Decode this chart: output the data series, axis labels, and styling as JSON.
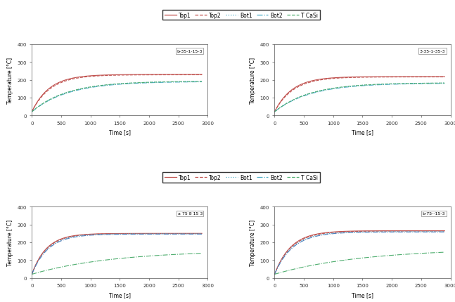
{
  "subplots": [
    {
      "label": "b-35-1-15-3",
      "row": 0,
      "col": 0,
      "curves": {
        "top1": {
          "T_end": 230,
          "T_start": 20,
          "tau": 300,
          "color": "#c0504d",
          "ls": "-",
          "lw": 0.8
        },
        "top2": {
          "T_end": 228,
          "T_start": 20,
          "tau": 320,
          "color": "#c0504d",
          "ls": "--",
          "lw": 0.8
        },
        "bot1": {
          "T_end": 192,
          "T_start": 20,
          "tau": 600,
          "color": "#4bacc6",
          "ls": ":",
          "lw": 0.8
        },
        "bot2": {
          "T_end": 190,
          "T_start": 20,
          "tau": 620,
          "color": "#4bacc6",
          "ls": "-.",
          "lw": 0.8
        },
        "tcasi": {
          "T_end": 192,
          "T_start": 20,
          "tau": 600,
          "color": "#4ead6e",
          "ls": "--",
          "lw": 0.8
        }
      }
    },
    {
      "label": "3-35-1-35-3",
      "row": 0,
      "col": 1,
      "curves": {
        "top1": {
          "T_end": 218,
          "T_start": 20,
          "tau": 300,
          "color": "#c0504d",
          "ls": "-",
          "lw": 0.8
        },
        "top2": {
          "T_end": 216,
          "T_start": 20,
          "tau": 320,
          "color": "#c0504d",
          "ls": "--",
          "lw": 0.8
        },
        "bot1": {
          "T_end": 183,
          "T_start": 20,
          "tau": 600,
          "color": "#4bacc6",
          "ls": ":",
          "lw": 0.8
        },
        "bot2": {
          "T_end": 181,
          "T_start": 20,
          "tau": 620,
          "color": "#4bacc6",
          "ls": "-.",
          "lw": 0.8
        },
        "tcasi": {
          "T_end": 183,
          "T_start": 20,
          "tau": 600,
          "color": "#4ead6e",
          "ls": "--",
          "lw": 0.8
        }
      }
    },
    {
      "label": "a 75 8 15 3",
      "row": 1,
      "col": 0,
      "curves": {
        "top1": {
          "T_end": 250,
          "T_start": 20,
          "tau": 250,
          "color": "#c0504d",
          "ls": "-",
          "lw": 0.8
        },
        "top2": {
          "T_end": 249,
          "T_start": 20,
          "tau": 260,
          "color": "#c0504d",
          "ls": "--",
          "lw": 0.8
        },
        "bot1": {
          "T_end": 248,
          "T_start": 20,
          "tau": 270,
          "color": "#4bacc6",
          "ls": ":",
          "lw": 0.8
        },
        "bot2": {
          "T_end": 246,
          "T_start": 20,
          "tau": 280,
          "color": "#4f81bd",
          "ls": "-.",
          "lw": 0.8
        },
        "tcasi": {
          "T_end": 155,
          "T_start": 20,
          "tau": 1400,
          "color": "#4ead6e",
          "ls": "-.",
          "lw": 0.8
        }
      }
    },
    {
      "label": "b-75--15-3",
      "row": 1,
      "col": 1,
      "curves": {
        "top1": {
          "T_end": 265,
          "T_start": 20,
          "tau": 280,
          "color": "#c0504d",
          "ls": "-",
          "lw": 0.8
        },
        "top2": {
          "T_end": 263,
          "T_start": 20,
          "tau": 290,
          "color": "#c0504d",
          "ls": "--",
          "lw": 0.8
        },
        "bot1": {
          "T_end": 260,
          "T_start": 20,
          "tau": 300,
          "color": "#4bacc6",
          "ls": ":",
          "lw": 0.8
        },
        "bot2": {
          "T_end": 258,
          "T_start": 20,
          "tau": 310,
          "color": "#4f81bd",
          "ls": "-.",
          "lw": 0.8
        },
        "tcasi": {
          "T_end": 165,
          "T_start": 20,
          "tau": 1500,
          "color": "#4ead6e",
          "ls": "-.",
          "lw": 0.8
        }
      }
    }
  ],
  "legend_names": [
    "Top1",
    "Top2",
    "Bot1",
    "Bot2",
    "T CaSi"
  ],
  "legend_colors": [
    "#c0504d",
    "#c0504d",
    "#4bacc6",
    "#4bacc6",
    "#4ead6e"
  ],
  "legend_ls": [
    "-",
    "--",
    ":",
    "-.",
    "--"
  ],
  "ylabel": "Temperature [°C]",
  "xlabel_top": "Time [s]",
  "xlabel_bot": "Time [s]",
  "ylim": [
    0,
    400
  ],
  "xlim": [
    0,
    3000
  ],
  "yticks": [
    0,
    100,
    200,
    300,
    400
  ],
  "xticks_top": [
    0,
    500,
    1000,
    1500,
    2000,
    2500,
    3000
  ],
  "xticks_bot": [
    0,
    500,
    1000,
    1500,
    2000,
    2500,
    3000
  ]
}
